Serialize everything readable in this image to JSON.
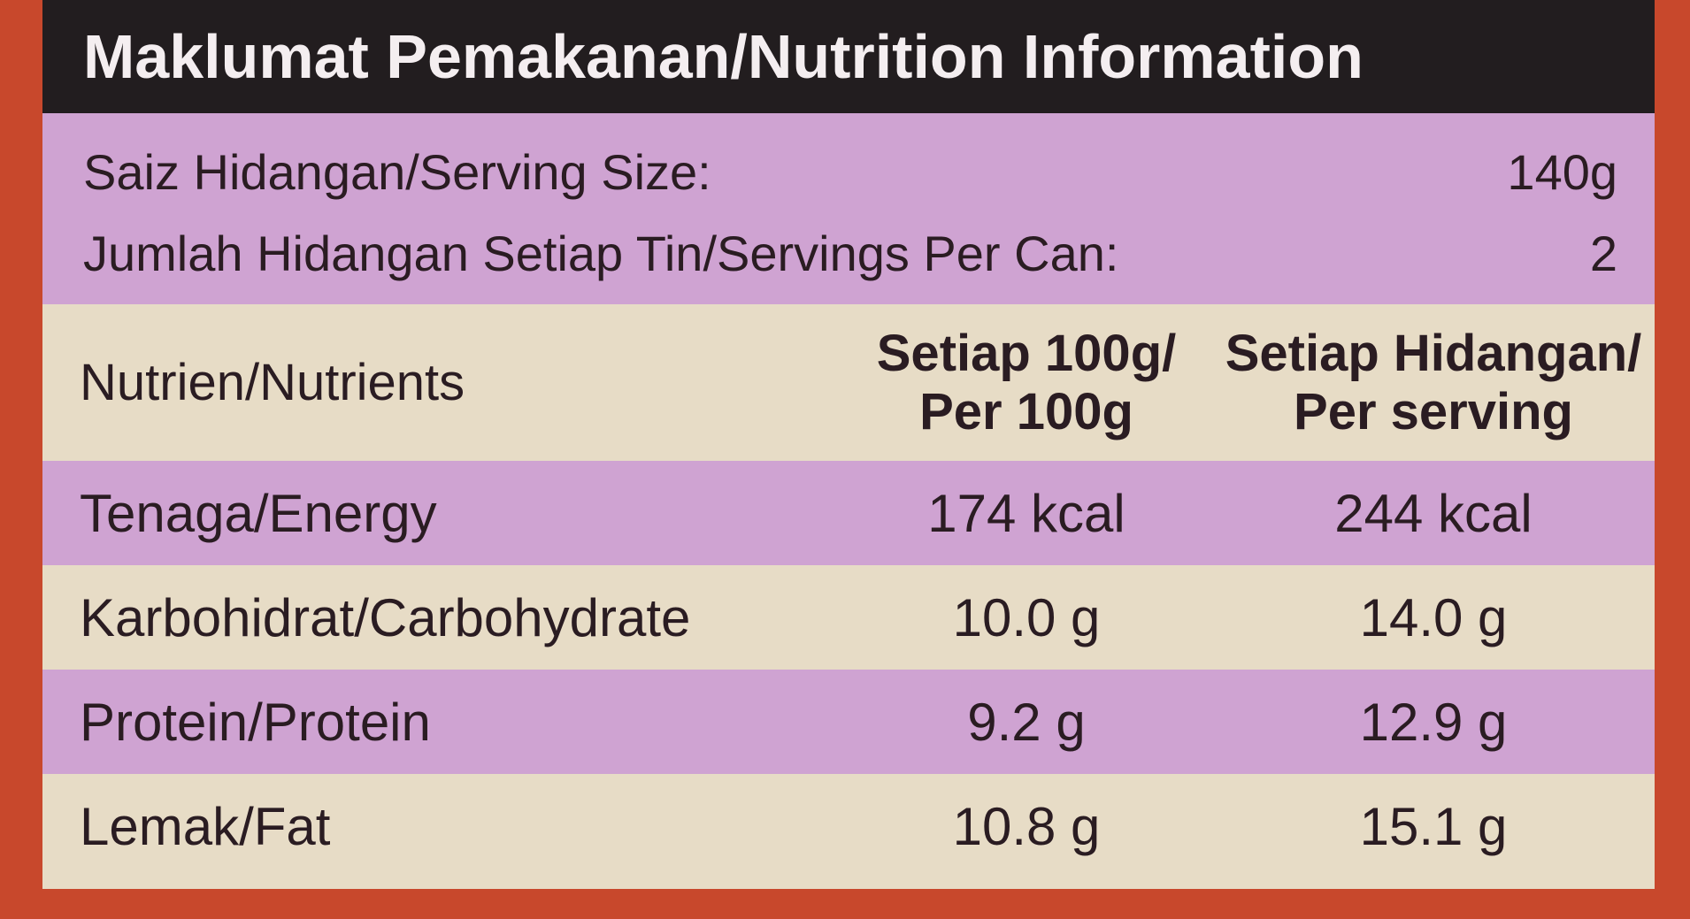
{
  "title": "Maklumat Pemakanan/Nutrition Information",
  "serving": [
    [
      "Saiz Hidangan/Serving Size:",
      "140g"
    ],
    [
      "Jumlah Hidangan Setiap Tin/Servings Per Can:",
      "2"
    ]
  ],
  "table": {
    "header": [
      [
        "Nutrien/Nutrients"
      ],
      [
        "Setiap 100g/",
        "Per 100g"
      ],
      [
        "Setiap Hidangan/",
        "Per serving"
      ]
    ],
    "rows": [
      [
        "Tenaga/Energy",
        "174 kcal",
        "244 kcal"
      ],
      [
        "Karbohidrat/Carbohydrate",
        "10.0 g",
        "14.0 g"
      ],
      [
        "Protein/Protein",
        "9.2 g",
        "12.9 g"
      ],
      [
        "Lemak/Fat",
        "10.8 g",
        "15.1 g"
      ]
    ]
  }
}
